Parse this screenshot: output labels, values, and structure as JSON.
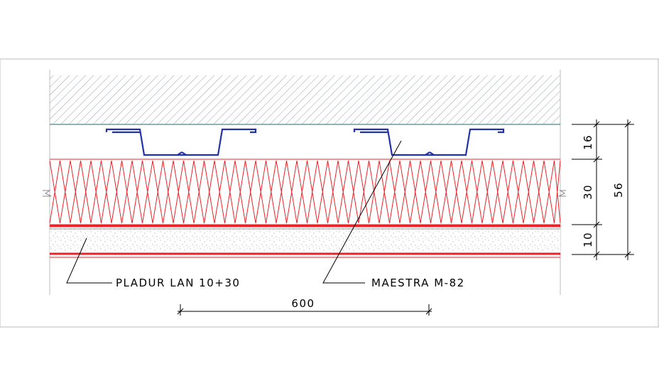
{
  "labels": {
    "insulation_board": "PLADUR LAN 10+30",
    "channel_profile": "MAESTRA M-82"
  },
  "dimensions": {
    "spacing": "600",
    "layer_top": "16",
    "layer_middle": "30",
    "layer_bottom": "10",
    "total": "56"
  },
  "colors": {
    "hatch": "#9aa0a6",
    "frame": "#b8bcc0",
    "insulation": "#e8242a",
    "profile": "#2233a8",
    "board_speckle": "#9e9e9e",
    "line": "#000000"
  }
}
